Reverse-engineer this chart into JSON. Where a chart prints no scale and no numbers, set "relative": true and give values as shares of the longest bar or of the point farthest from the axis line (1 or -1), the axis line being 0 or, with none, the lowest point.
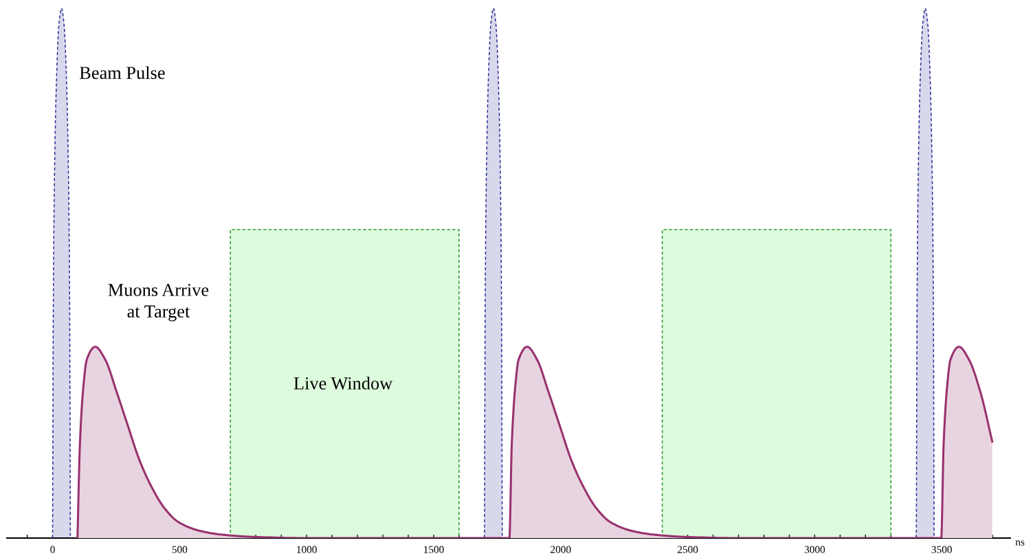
{
  "chart_data": {
    "type": "area",
    "relative": true,
    "xlabel": "ns",
    "xlim": [
      -180,
      3770
    ],
    "xticks": [
      {
        "value": -100,
        "label": null
      },
      0,
      {
        "value": 100,
        "label": null
      },
      {
        "value": 200,
        "label": null
      },
      {
        "value": 300,
        "label": null
      },
      {
        "value": 400,
        "label": null
      },
      500,
      {
        "value": 600,
        "label": null
      },
      {
        "value": 700,
        "label": null
      },
      {
        "value": 800,
        "label": null
      },
      {
        "value": 900,
        "label": null
      },
      1000,
      {
        "value": 1100,
        "label": null
      },
      {
        "value": 1200,
        "label": null
      },
      {
        "value": 1300,
        "label": null
      },
      {
        "value": 1400,
        "label": null
      },
      1500,
      {
        "value": 1600,
        "label": null
      },
      {
        "value": 1700,
        "label": null
      },
      {
        "value": 1800,
        "label": null
      },
      {
        "value": 1900,
        "label": null
      },
      2000,
      {
        "value": 2100,
        "label": null
      },
      {
        "value": 2200,
        "label": null
      },
      {
        "value": 2300,
        "label": null
      },
      {
        "value": 2400,
        "label": null
      },
      2500,
      {
        "value": 2600,
        "label": null
      },
      {
        "value": 2700,
        "label": null
      },
      {
        "value": 2800,
        "label": null
      },
      {
        "value": 2900,
        "label": null
      },
      3000,
      {
        "value": 3100,
        "label": null
      },
      {
        "value": 3200,
        "label": null
      },
      {
        "value": 3300,
        "label": null
      },
      {
        "value": 3400,
        "label": null
      },
      3500,
      {
        "value": 3600,
        "label": null
      },
      {
        "value": 3700,
        "label": null
      }
    ],
    "grid": false,
    "series": [
      {
        "color": "#ddfcdd",
        "line_style": "dashed",
        "x": [
          700,
          700,
          1600,
          1600,
          null,
          2400,
          2400,
          3300,
          3300
        ],
        "values": [
          0,
          0.582,
          0.582,
          0,
          null,
          0,
          0.582,
          0.582,
          0
        ]
      },
      {
        "color": "#d8d8ec",
        "line_style": "dashed",
        "x": [
          0,
          3,
          8,
          15,
          25,
          35,
          45,
          55,
          62,
          67,
          70,
          null,
          1700,
          1703,
          1708,
          1715,
          1725,
          1735,
          1745,
          1755,
          1762,
          1767,
          1770,
          null,
          3400,
          3403,
          3408,
          3415,
          3425,
          3435,
          3445,
          3455,
          3462,
          3467,
          3470
        ],
        "values": [
          0,
          0.45,
          0.7,
          0.86,
          0.97,
          1,
          0.97,
          0.86,
          0.7,
          0.45,
          0,
          null,
          0,
          0.45,
          0.7,
          0.86,
          0.97,
          1,
          0.97,
          0.86,
          0.7,
          0.45,
          0,
          null,
          0,
          0.45,
          0.7,
          0.86,
          0.97,
          1,
          0.97,
          0.86,
          0.7,
          0.45,
          0
        ]
      },
      {
        "color": "#e8d4e0",
        "line_style": "solid",
        "x": [
          98,
          107.5,
          121,
          134.6,
          168,
          207,
          252,
          297,
          342,
          387,
          441,
          496,
          585,
          676,
          800,
          1000,
          1798,
          1807.5,
          1821,
          1834.6,
          1868,
          1907,
          1952,
          1997,
          2042,
          2087,
          2141,
          2196,
          2285,
          2376,
          2500,
          2700,
          3498,
          3507.5,
          3521,
          3534.6,
          3568,
          3607,
          3652,
          3699
        ],
        "values": [
          0,
          0.177,
          0.285,
          0.337,
          0.361,
          0.337,
          0.276,
          0.211,
          0.147,
          0.099,
          0.056,
          0.03,
          0.013,
          0.006,
          0.002,
          0,
          0,
          0.177,
          0.285,
          0.337,
          0.361,
          0.337,
          0.276,
          0.211,
          0.147,
          0.099,
          0.056,
          0.03,
          0.013,
          0.006,
          0.002,
          0,
          0,
          0.177,
          0.285,
          0.337,
          0.361,
          0.337,
          0.276,
          0.182
        ]
      }
    ],
    "annotations": [
      "Beam Pulse",
      "Muons Arrive\nat Target",
      "Live Window"
    ]
  }
}
